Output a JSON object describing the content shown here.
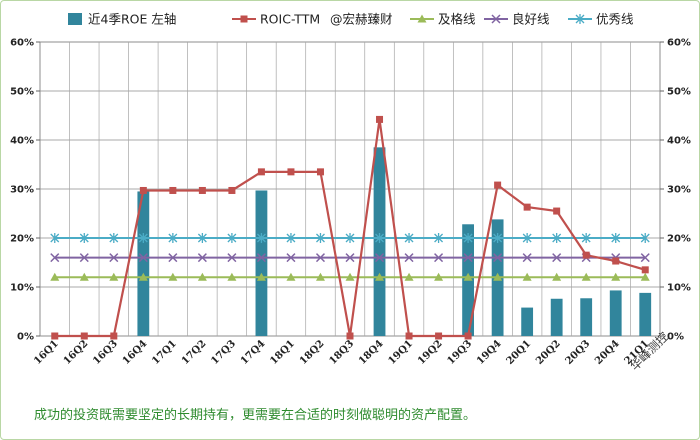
{
  "chart_data": {
    "type": "bar+line",
    "categories": [
      "16Q1",
      "16Q2",
      "16Q3",
      "16Q4",
      "17Q1",
      "17Q2",
      "17Q3",
      "17Q4",
      "18Q1",
      "18Q2",
      "18Q3",
      "18Q4",
      "19Q1",
      "19Q2",
      "19Q3",
      "19Q4",
      "20Q1",
      "20Q2",
      "20Q3",
      "20Q4",
      "21Q1"
    ],
    "ylim": [
      0,
      60
    ],
    "yticks": [
      0,
      10,
      20,
      30,
      40,
      50,
      60
    ],
    "ytick_labels": [
      "0%",
      "10%",
      "20%",
      "30%",
      "40%",
      "50%",
      "60%"
    ],
    "grid": true,
    "legend_position": "top",
    "series": [
      {
        "name": "近4季ROE 左轴",
        "type": "bar",
        "color": "#31859c",
        "values": [
          null,
          null,
          null,
          29.5,
          null,
          null,
          null,
          29.7,
          null,
          null,
          null,
          38.5,
          null,
          null,
          22.8,
          23.8,
          5.8,
          7.6,
          7.7,
          9.3,
          8.8
        ]
      },
      {
        "name": "ROIC-TTM",
        "type": "line",
        "marker": "square",
        "color": "#c0504d",
        "values": [
          0,
          0,
          0,
          29.7,
          29.7,
          29.7,
          29.7,
          33.5,
          33.5,
          33.5,
          0,
          44.2,
          0,
          0,
          0,
          30.8,
          26.3,
          25.5,
          16.5,
          15.3,
          13.5
        ]
      },
      {
        "name": "及格线",
        "type": "line",
        "marker": "triangle",
        "color": "#9bbb59",
        "values": [
          12,
          12,
          12,
          12,
          12,
          12,
          12,
          12,
          12,
          12,
          12,
          12,
          12,
          12,
          12,
          12,
          12,
          12,
          12,
          12,
          12
        ]
      },
      {
        "name": "良好线",
        "type": "line",
        "marker": "x",
        "color": "#8064a2",
        "values": [
          16,
          16,
          16,
          16,
          16,
          16,
          16,
          16,
          16,
          16,
          16,
          16,
          16,
          16,
          16,
          16,
          16,
          16,
          16,
          16,
          16
        ]
      },
      {
        "name": "优秀线",
        "type": "line",
        "marker": "star",
        "color": "#4bacc6",
        "values": [
          20,
          20,
          20,
          20,
          20,
          20,
          20,
          20,
          20,
          20,
          20,
          20,
          20,
          20,
          20,
          20,
          20,
          20,
          20,
          20,
          20
        ]
      }
    ],
    "legend_extra": "@宏赫臻财"
  },
  "footer_text": "成功的投资既需要坚定的长期持有，更需要在合适的时刻做聪明的资产配置。",
  "watermark_text": "华峰测控"
}
